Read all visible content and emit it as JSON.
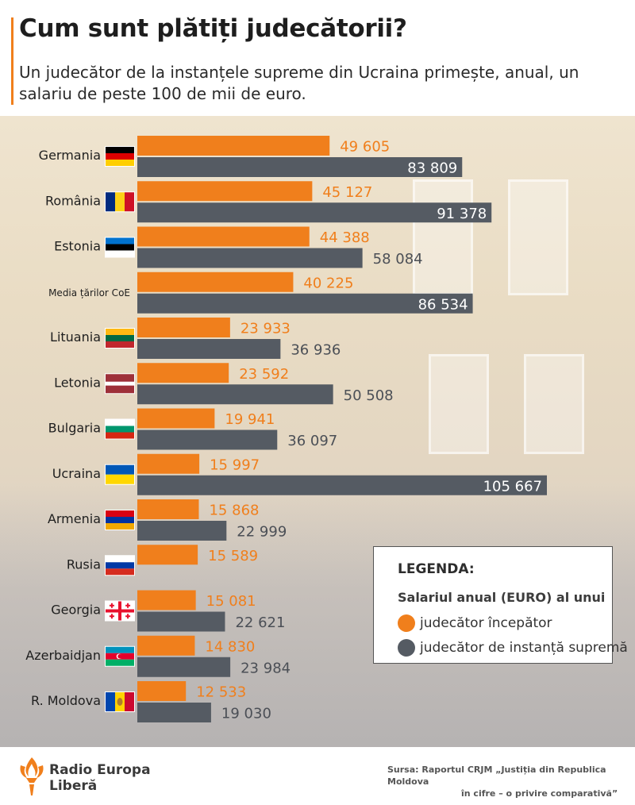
{
  "title": "Cum sunt plătiți judecătorii?",
  "subtitle": "Un judecător de la instanțele supreme din Ucraina primește, anual, un salariu de peste 100 de mii de euro.",
  "legend": {
    "heading": "LEGENDA:",
    "subtitle": "Salariul anual (EURO) al unui",
    "items": [
      {
        "label": "judecător începător",
        "color": "#f07f1c"
      },
      {
        "label": "judecător de instanță supremă",
        "color": "#555b63"
      }
    ]
  },
  "footer": {
    "logo_line1": "Radio Europa",
    "logo_line2": "Liberă",
    "source_line1": "Sursa: Raportul CRJM „Justiția din Republica Moldova",
    "source_line2": "în cifre – o privire comparativă”"
  },
  "chart_data": {
    "type": "bar",
    "orientation": "horizontal",
    "categories": [
      "Germania",
      "România",
      "Estonia",
      "Media țărilor CoE",
      "Lituania",
      "Letonia",
      "Bulgaria",
      "Ucraina",
      "Armenia",
      "Rusia",
      "Georgia",
      "Azerbaidjan",
      "R. Moldova"
    ],
    "flags": [
      "germany-flag-icon",
      "romania-flag-icon",
      "estonia-flag-icon",
      "",
      "lithuania-flag-icon",
      "latvia-flag-icon",
      "bulgaria-flag-icon",
      "ukraine-flag-icon",
      "armenia-flag-icon",
      "russia-flag-icon",
      "georgia-flag-icon",
      "azerbaijan-flag-icon",
      "moldova-flag-icon"
    ],
    "series": [
      {
        "name": "judecător începător",
        "color": "#f07f1c",
        "values": [
          49605,
          45127,
          44388,
          40225,
          23933,
          23592,
          19941,
          15997,
          15868,
          15589,
          15081,
          14830,
          12533
        ],
        "labels": [
          "49 605",
          "45 127",
          "44 388",
          "40 225",
          "23 933",
          "23 592",
          "19 941",
          "15 997",
          "15 868",
          "15 589",
          "15 081",
          "14 830",
          "12 533"
        ]
      },
      {
        "name": "judecător de instanță supremă",
        "color": "#555b63",
        "values": [
          83809,
          91378,
          58084,
          86534,
          36936,
          50508,
          36097,
          105667,
          22999,
          null,
          22621,
          23984,
          19030
        ],
        "labels": [
          "83 809",
          "91 378",
          "58 084",
          "86 534",
          "36 936",
          "50 508",
          "36 097",
          "105 667",
          "22 999",
          "",
          "22 621",
          "23 984",
          "19 030"
        ]
      }
    ],
    "xlim": [
      0,
      105667
    ]
  }
}
